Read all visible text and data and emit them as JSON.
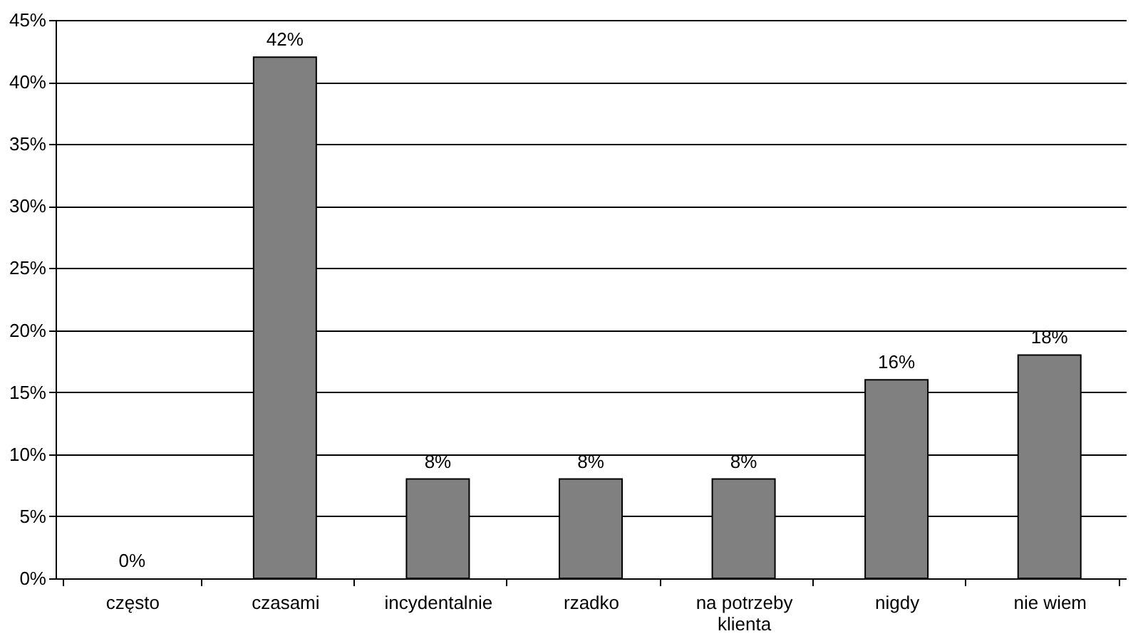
{
  "chart_data": {
    "type": "bar",
    "categories": [
      "często",
      "czasami",
      "incydentalnie",
      "rzadko",
      "na potrzeby klienta",
      "nigdy",
      "nie wiem"
    ],
    "values": [
      0,
      42,
      8,
      8,
      8,
      16,
      18
    ],
    "value_labels": [
      "0%",
      "42%",
      "8%",
      "8%",
      "8%",
      "16%",
      "18%"
    ],
    "color": "#808080",
    "ylim": [
      0,
      45
    ],
    "yticks": [
      {
        "value": 0,
        "label": "0%"
      },
      {
        "value": 5,
        "label": "5%"
      },
      {
        "value": 10,
        "label": "10%"
      },
      {
        "value": 15,
        "label": "15%"
      },
      {
        "value": 20,
        "label": "20%"
      },
      {
        "value": 25,
        "label": "25%"
      },
      {
        "value": 30,
        "label": "30%"
      },
      {
        "value": 35,
        "label": "35%"
      },
      {
        "value": 40,
        "label": "40%"
      },
      {
        "value": 45,
        "label": "45%"
      }
    ],
    "grid": "y"
  }
}
